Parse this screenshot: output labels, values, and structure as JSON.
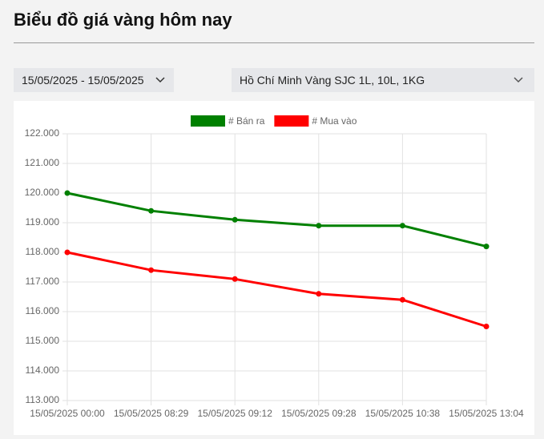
{
  "header": {
    "title": "Biểu đồ giá vàng hôm nay"
  },
  "filters": {
    "date_range": "15/05/2025 - 15/05/2025",
    "location": "Hồ Chí Minh Vàng SJC 1L, 10L, 1KG"
  },
  "chart_data": {
    "type": "line",
    "categories": [
      "15/05/2025 00:00",
      "15/05/2025 08:29",
      "15/05/2025 09:12",
      "15/05/2025 09:28",
      "15/05/2025 10:38",
      "15/05/2025 13:04"
    ],
    "series": [
      {
        "name": "# Bán ra",
        "color": "#008000",
        "values": [
          120000,
          119400,
          119100,
          118900,
          118900,
          118200
        ]
      },
      {
        "name": "# Mua vào",
        "color": "#ff0000",
        "values": [
          118000,
          117400,
          117100,
          116600,
          116400,
          115500
        ]
      }
    ],
    "ylim": [
      113000,
      122000
    ],
    "yticks": [
      {
        "value": 113000,
        "label": "113.000"
      },
      {
        "value": 114000,
        "label": "114.000"
      },
      {
        "value": 115000,
        "label": "115.000"
      },
      {
        "value": 116000,
        "label": "116.000"
      },
      {
        "value": 117000,
        "label": "117.000"
      },
      {
        "value": 118000,
        "label": "118.000"
      },
      {
        "value": 119000,
        "label": "119.000"
      },
      {
        "value": 120000,
        "label": "120.000"
      },
      {
        "value": 121000,
        "label": "121.000"
      },
      {
        "value": 122000,
        "label": "122.000"
      }
    ],
    "grid": true,
    "legend": "top"
  }
}
